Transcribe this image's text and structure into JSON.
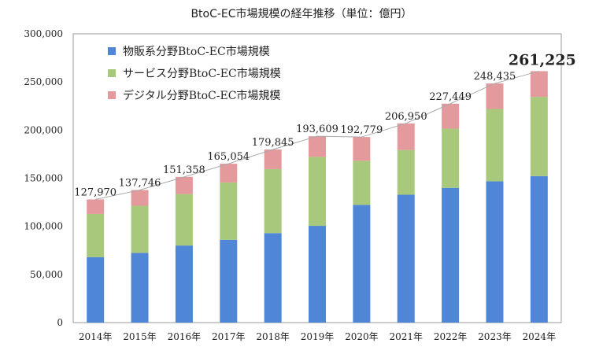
{
  "chart_data": {
    "type": "bar",
    "stacked": true,
    "title": "BtoC-EC市場規模の経年推移（単位：億円）",
    "xlabel": "",
    "ylabel": "",
    "ylim": [
      0,
      300000
    ],
    "yticks": [
      0,
      50000,
      100000,
      150000,
      200000,
      250000,
      300000
    ],
    "ytick_labels": [
      "0",
      "50,000",
      "100,000",
      "150,000",
      "200,000",
      "250,000",
      "300,000"
    ],
    "legend_position": "top-left",
    "categories": [
      "2014年",
      "2015年",
      "2016年",
      "2017年",
      "2018年",
      "2019年",
      "2020年",
      "2021年",
      "2022年",
      "2023年",
      "2024年"
    ],
    "series": [
      {
        "name": "物販系分野BtoC-EC市場規模",
        "color": "#4f86d6",
        "values": [
          68043,
          72398,
          80043,
          86008,
          92992,
          100515,
          122333,
          132865,
          139997,
          146760,
          152194
        ]
      },
      {
        "name": "サービス分野BtoC-EC市場規模",
        "color": "#a8c97b",
        "values": [
          44816,
          49014,
          53532,
          59568,
          66471,
          71672,
          45832,
          46424,
          61477,
          75169,
          82319
        ]
      },
      {
        "name": "デジタル分野BtoC-EC市場規模",
        "color": "#e4999d",
        "values": [
          15111,
          16334,
          17782,
          19478,
          20382,
          21422,
          24614,
          27661,
          25974,
          26506,
          26712
        ]
      }
    ],
    "totals": [
      127970,
      137746,
      151358,
      165054,
      179845,
      193609,
      192779,
      206950,
      227449,
      248435,
      261225
    ],
    "total_labels": [
      "127,970",
      "137,746",
      "151,358",
      "165,054",
      "179,845",
      "193,609",
      "192,779",
      "206,950",
      "227,449",
      "248,435",
      "261,225"
    ]
  }
}
